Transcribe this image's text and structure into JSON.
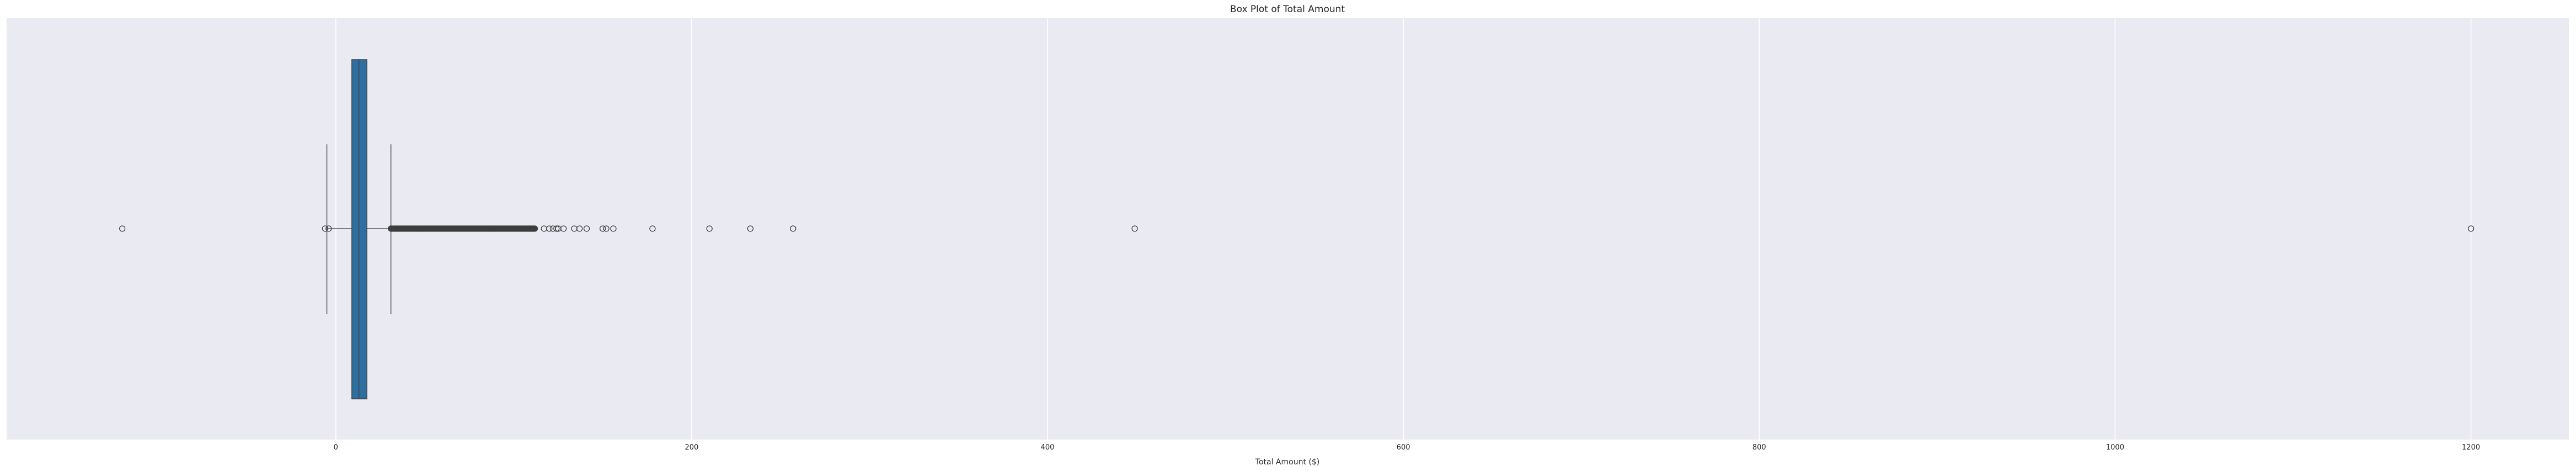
{
  "chart_data": {
    "type": "box",
    "title": "Box Plot of Total Amount",
    "xlabel": "Total Amount ($)",
    "ylabel": "",
    "orientation": "horizontal",
    "xlim": [
      -185,
      1255
    ],
    "xticks": [
      0,
      200,
      400,
      600,
      800,
      1000,
      1200
    ],
    "grid": true,
    "background": "#eaeaf2",
    "grid_color": "#ffffff",
    "box_color": "#2f6f9f",
    "line_color": "#3d3d3d",
    "box": {
      "whisker_low": -5,
      "q1": 9,
      "median": 13,
      "q3": 17.5,
      "whisker_high": 31
    },
    "outliers_sparse": [
      -120,
      -6,
      -4,
      117,
      120,
      122,
      124,
      125,
      128,
      134,
      137,
      141,
      150,
      152,
      156,
      178,
      210,
      233,
      257,
      449,
      1200
    ],
    "outliers_dense_range": [
      31,
      112
    ]
  }
}
